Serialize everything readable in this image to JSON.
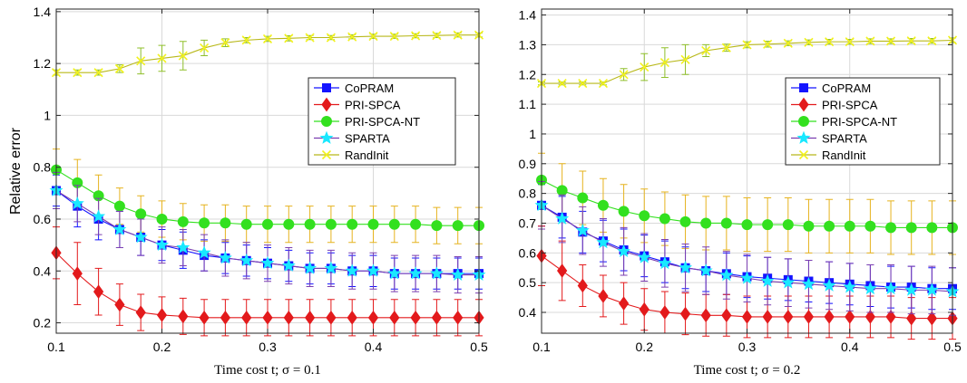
{
  "colors": {
    "CoPRAM": "#1414ff",
    "PRI-SPCA": "#e31a1c",
    "PRI-SPCA-NT": "#33e01f",
    "SPARTA": "#19e8ff",
    "RandInit": "#f2f21c",
    "SPARTA_line": "#7b3fb0",
    "errorbar": "#e6b31e"
  },
  "chart_data": [
    {
      "type": "line",
      "xlabel": "Time cost t; σ = 0.1",
      "ylabel": "Relative error",
      "xlim": [
        0.1,
        0.5
      ],
      "ylim": [
        0.16,
        1.41
      ],
      "xticks": [
        0.1,
        0.2,
        0.3,
        0.4,
        0.5
      ],
      "xtick_labels": [
        "0.1",
        "0.2",
        "0.3",
        "0.4",
        "0.5"
      ],
      "yticks": [
        0.2,
        0.4,
        0.6,
        0.8,
        1.0,
        1.2,
        1.4
      ],
      "ytick_labels": [
        "0.2",
        "0.4",
        "0.6",
        "0.8",
        "1",
        "1.2",
        "1.4"
      ],
      "grid": true,
      "legend_position": "center-right",
      "x": [
        0.1,
        0.12,
        0.14,
        0.16,
        0.18,
        0.2,
        0.22,
        0.24,
        0.26,
        0.28,
        0.3,
        0.32,
        0.34,
        0.36,
        0.38,
        0.4,
        0.42,
        0.44,
        0.46,
        0.48,
        0.5
      ],
      "series": [
        {
          "name": "CoPRAM",
          "marker": "square",
          "values": [
            0.71,
            0.65,
            0.6,
            0.56,
            0.53,
            0.5,
            0.48,
            0.46,
            0.45,
            0.44,
            0.43,
            0.42,
            0.41,
            0.41,
            0.4,
            0.4,
            0.39,
            0.39,
            0.39,
            0.39,
            0.39
          ],
          "err": [
            0.06,
            0.08,
            0.08,
            0.07,
            0.07,
            0.06,
            0.07,
            0.06,
            0.06,
            0.06,
            0.06,
            0.06,
            0.06,
            0.06,
            0.06,
            0.06,
            0.06,
            0.06,
            0.06,
            0.06,
            0.06
          ]
        },
        {
          "name": "PRI-SPCA",
          "marker": "diamond",
          "values": [
            0.47,
            0.39,
            0.32,
            0.27,
            0.24,
            0.23,
            0.225,
            0.22,
            0.22,
            0.22,
            0.22,
            0.22,
            0.22,
            0.22,
            0.22,
            0.22,
            0.22,
            0.22,
            0.22,
            0.22,
            0.22
          ],
          "err": [
            0.1,
            0.12,
            0.09,
            0.08,
            0.07,
            0.07,
            0.07,
            0.07,
            0.07,
            0.07,
            0.07,
            0.07,
            0.07,
            0.07,
            0.07,
            0.07,
            0.07,
            0.07,
            0.07,
            0.07,
            0.07
          ]
        },
        {
          "name": "PRI-SPCA-NT",
          "marker": "circle",
          "values": [
            0.79,
            0.74,
            0.69,
            0.65,
            0.62,
            0.6,
            0.59,
            0.585,
            0.585,
            0.58,
            0.58,
            0.58,
            0.58,
            0.58,
            0.58,
            0.58,
            0.58,
            0.58,
            0.575,
            0.575,
            0.575
          ],
          "err": [
            0.08,
            0.09,
            0.08,
            0.07,
            0.07,
            0.07,
            0.07,
            0.07,
            0.07,
            0.07,
            0.07,
            0.07,
            0.07,
            0.07,
            0.07,
            0.07,
            0.07,
            0.07,
            0.07,
            0.07,
            0.07
          ]
        },
        {
          "name": "SPARTA",
          "marker": "star",
          "values": [
            0.71,
            0.66,
            0.61,
            0.56,
            0.53,
            0.5,
            0.49,
            0.47,
            0.45,
            0.44,
            0.43,
            0.42,
            0.41,
            0.41,
            0.4,
            0.4,
            0.39,
            0.39,
            0.39,
            0.385,
            0.385
          ],
          "err": [
            0.07,
            0.07,
            0.07,
            0.07,
            0.07,
            0.07,
            0.07,
            0.07,
            0.07,
            0.07,
            0.07,
            0.07,
            0.07,
            0.07,
            0.07,
            0.07,
            0.07,
            0.07,
            0.07,
            0.07,
            0.07
          ]
        },
        {
          "name": "RandInit",
          "marker": "x",
          "values": [
            1.165,
            1.165,
            1.165,
            1.18,
            1.21,
            1.22,
            1.23,
            1.26,
            1.28,
            1.29,
            1.295,
            1.297,
            1.3,
            1.3,
            1.303,
            1.305,
            1.305,
            1.307,
            1.308,
            1.31,
            1.31
          ],
          "err": [
            0.01,
            0.01,
            0.01,
            0.015,
            0.05,
            0.05,
            0.055,
            0.03,
            0.015,
            0.01,
            0.01,
            0.01,
            0.008,
            0.008,
            0.008,
            0.008,
            0.008,
            0.008,
            0.008,
            0.008,
            0.008
          ]
        }
      ]
    },
    {
      "type": "line",
      "xlabel": "Time cost t; σ = 0.2",
      "ylabel": "",
      "xlim": [
        0.1,
        0.5
      ],
      "ylim": [
        0.33,
        1.42
      ],
      "xticks": [
        0.1,
        0.2,
        0.3,
        0.4,
        0.5
      ],
      "xtick_labels": [
        "0.1",
        "0.2",
        "0.3",
        "0.4",
        "0.5"
      ],
      "yticks": [
        0.4,
        0.5,
        0.6,
        0.7,
        0.8,
        0.9,
        1.0,
        1.1,
        1.2,
        1.3,
        1.4
      ],
      "ytick_labels": [
        "0.4",
        "0.5",
        "0.6",
        "0.7",
        "0.8",
        "0.9",
        "1",
        "1.1",
        "1.2",
        "1.3",
        "1.4"
      ],
      "grid": true,
      "legend_position": "center-right",
      "x": [
        0.1,
        0.12,
        0.14,
        0.16,
        0.18,
        0.2,
        0.22,
        0.24,
        0.26,
        0.28,
        0.3,
        0.32,
        0.34,
        0.36,
        0.38,
        0.4,
        0.42,
        0.44,
        0.46,
        0.48,
        0.5
      ],
      "series": [
        {
          "name": "CoPRAM",
          "marker": "square",
          "values": [
            0.76,
            0.72,
            0.67,
            0.64,
            0.61,
            0.59,
            0.57,
            0.55,
            0.54,
            0.53,
            0.52,
            0.515,
            0.51,
            0.505,
            0.5,
            0.495,
            0.49,
            0.485,
            0.485,
            0.48,
            0.48
          ],
          "err": [
            0.07,
            0.07,
            0.07,
            0.07,
            0.07,
            0.07,
            0.07,
            0.07,
            0.07,
            0.07,
            0.07,
            0.07,
            0.07,
            0.07,
            0.07,
            0.07,
            0.07,
            0.07,
            0.07,
            0.07,
            0.07
          ]
        },
        {
          "name": "PRI-SPCA",
          "marker": "diamond",
          "values": [
            0.59,
            0.54,
            0.49,
            0.455,
            0.43,
            0.41,
            0.4,
            0.395,
            0.39,
            0.39,
            0.385,
            0.385,
            0.385,
            0.385,
            0.385,
            0.385,
            0.385,
            0.385,
            0.38,
            0.38,
            0.38
          ],
          "err": [
            0.1,
            0.1,
            0.07,
            0.07,
            0.07,
            0.07,
            0.07,
            0.07,
            0.07,
            0.07,
            0.07,
            0.07,
            0.07,
            0.07,
            0.07,
            0.07,
            0.07,
            0.07,
            0.07,
            0.07,
            0.07
          ]
        },
        {
          "name": "PRI-SPCA-NT",
          "marker": "circle",
          "values": [
            0.845,
            0.81,
            0.785,
            0.76,
            0.74,
            0.725,
            0.715,
            0.705,
            0.7,
            0.7,
            0.695,
            0.695,
            0.695,
            0.69,
            0.69,
            0.69,
            0.69,
            0.685,
            0.685,
            0.685,
            0.685
          ],
          "err": [
            0.09,
            0.09,
            0.09,
            0.09,
            0.09,
            0.09,
            0.09,
            0.09,
            0.09,
            0.09,
            0.09,
            0.09,
            0.09,
            0.09,
            0.09,
            0.09,
            0.09,
            0.09,
            0.09,
            0.09,
            0.09
          ]
        },
        {
          "name": "SPARTA",
          "marker": "star",
          "values": [
            0.76,
            0.715,
            0.675,
            0.635,
            0.605,
            0.585,
            0.565,
            0.55,
            0.54,
            0.525,
            0.515,
            0.505,
            0.5,
            0.495,
            0.49,
            0.485,
            0.48,
            0.48,
            0.475,
            0.475,
            0.47
          ],
          "err": [
            0.08,
            0.08,
            0.08,
            0.08,
            0.08,
            0.08,
            0.08,
            0.08,
            0.08,
            0.08,
            0.08,
            0.08,
            0.08,
            0.08,
            0.08,
            0.08,
            0.08,
            0.08,
            0.08,
            0.08,
            0.08
          ]
        },
        {
          "name": "RandInit",
          "marker": "x",
          "values": [
            1.17,
            1.17,
            1.17,
            1.17,
            1.2,
            1.225,
            1.24,
            1.25,
            1.28,
            1.29,
            1.3,
            1.302,
            1.305,
            1.308,
            1.31,
            1.31,
            1.312,
            1.312,
            1.313,
            1.313,
            1.315
          ],
          "err": [
            0.005,
            0.005,
            0.005,
            0.005,
            0.02,
            0.045,
            0.05,
            0.05,
            0.02,
            0.012,
            0.01,
            0.01,
            0.008,
            0.008,
            0.008,
            0.008,
            0.008,
            0.008,
            0.008,
            0.008,
            0.008
          ]
        }
      ]
    }
  ]
}
